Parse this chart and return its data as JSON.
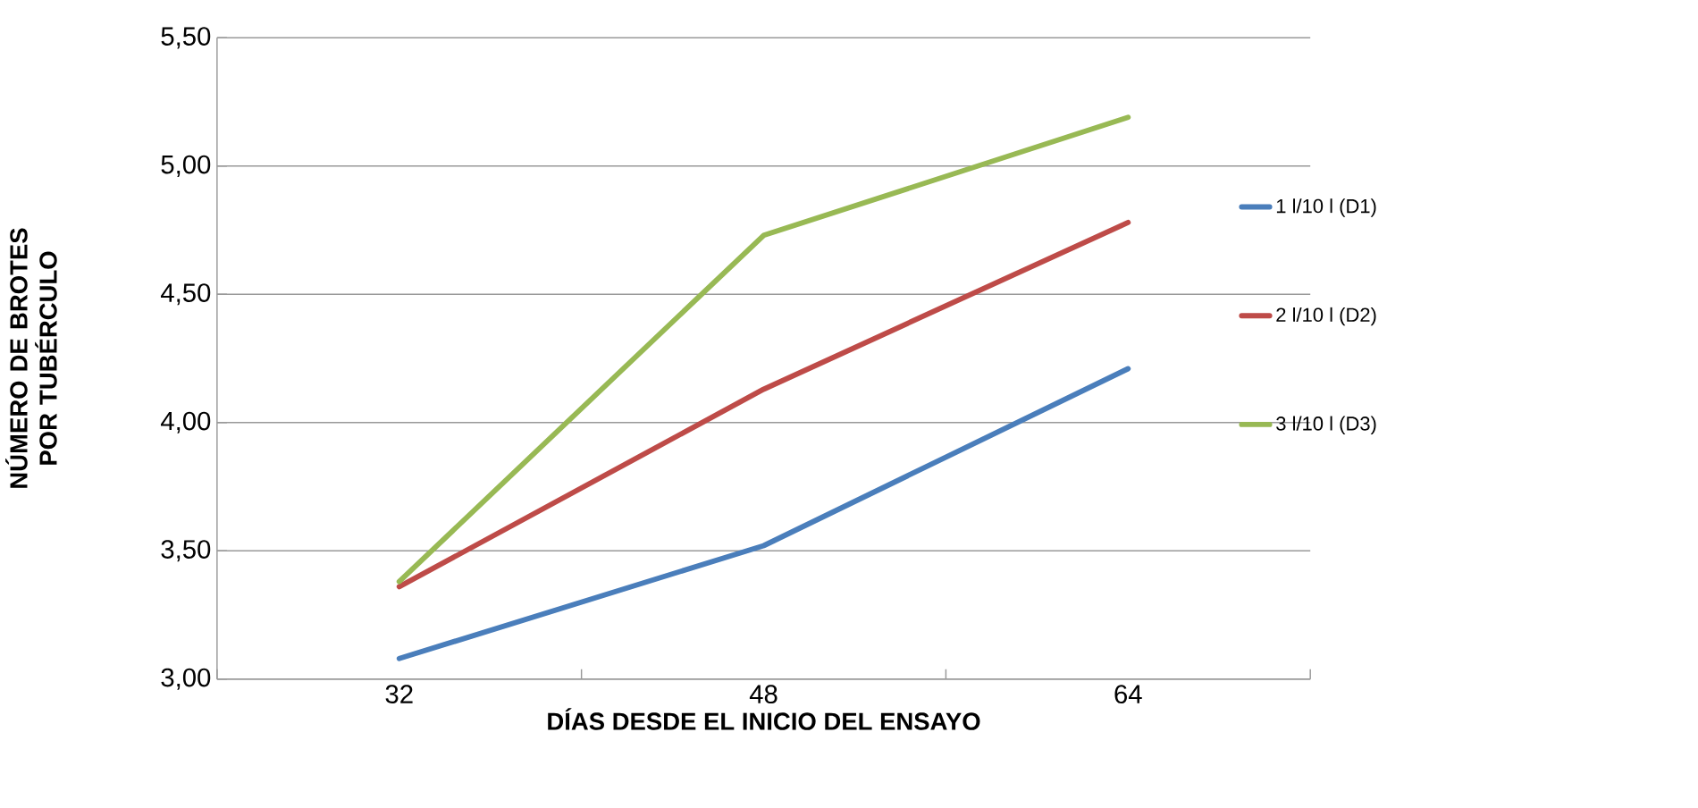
{
  "chart_data": {
    "type": "line",
    "xlabel": "DÍAS DESDE EL INICIO DEL ENSAYO",
    "ylabel": "NÚMERO DE BROTES POR TUBÉRCULO",
    "categories": [
      "32",
      "48",
      "64"
    ],
    "series": [
      {
        "name": "1  l/10 l (D1)",
        "color": "#4a7ebb",
        "values": [
          3.08,
          3.52,
          4.21
        ]
      },
      {
        "name": "2  l/10 l (D2)",
        "color": "#be4b48",
        "values": [
          3.36,
          4.13,
          4.78
        ]
      },
      {
        "name": "3  l/10 l (D3)",
        "color": "#98b954",
        "values": [
          3.38,
          4.73,
          5.19
        ]
      }
    ],
    "ylim": [
      3,
      5.5
    ],
    "yticks": [
      {
        "value": 3,
        "label": "3,00"
      },
      {
        "value": 3.5,
        "label": "3,50"
      },
      {
        "value": 4,
        "label": "4,00"
      },
      {
        "value": 4.5,
        "label": "4,50"
      },
      {
        "value": 5,
        "label": "5,00"
      },
      {
        "value": 5.5,
        "label": "5,50"
      }
    ],
    "grid": "y",
    "legend": "right",
    "line_style": "solid"
  }
}
